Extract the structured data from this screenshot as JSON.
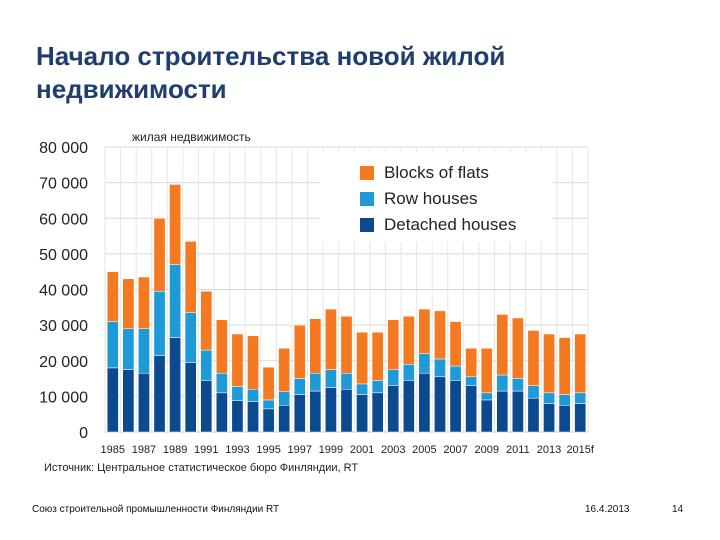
{
  "slide": {
    "title": "Начало строительства новой жилой недвижимости",
    "chart_label": "жилая недвижимость",
    "source": "Источник: Центральное статистическое бюро Финляндии, RT",
    "footer_org": "Союз строительной промышленности Финляндии RT",
    "footer_date": "16.4.2013",
    "page_number": "14"
  },
  "colors": {
    "blocks": "#f47920",
    "row": "#1e9ad6",
    "detached": "#0b4a8f",
    "grid": "#d9d9d9"
  },
  "chart_data": {
    "type": "bar",
    "stacked": true,
    "title": "жилая недвижимость",
    "xlabel": "",
    "ylabel": "",
    "ylim": [
      0,
      80000
    ],
    "yticks": [
      0,
      10000,
      20000,
      30000,
      40000,
      50000,
      60000,
      70000,
      80000
    ],
    "ytick_labels": [
      "0",
      "10 000",
      "20 000",
      "30 000",
      "40 000",
      "50 000",
      "60 000",
      "70 000",
      "80 000"
    ],
    "categories": [
      "1985",
      "1986",
      "1987",
      "1988",
      "1989",
      "1990",
      "1991",
      "1992",
      "1993",
      "1994",
      "1995",
      "1996",
      "1997",
      "1998",
      "1999",
      "2000",
      "2001",
      "2002",
      "2003",
      "2004",
      "2005",
      "2006",
      "2007",
      "2008",
      "2009",
      "2010",
      "2011",
      "2012",
      "2013",
      "2014",
      "2015f"
    ],
    "xtick_labels": [
      "1985",
      "1987",
      "1989",
      "1991",
      "1993",
      "1995",
      "1997",
      "1999",
      "2001",
      "2003",
      "2005",
      "2007",
      "2009",
      "2011",
      "2013",
      "2015f"
    ],
    "legend_position": "top-right",
    "series": [
      {
        "name": "Detached houses",
        "color_key": "detached",
        "values": [
          18000,
          17500,
          16500,
          21500,
          26500,
          19500,
          14500,
          11000,
          8800,
          8500,
          6500,
          7500,
          10500,
          11500,
          12500,
          12000,
          10500,
          11000,
          13000,
          14500,
          16500,
          15500,
          14500,
          13000,
          9000,
          11500,
          11500,
          9500,
          8000,
          7500,
          8000
        ]
      },
      {
        "name": "Row houses",
        "color_key": "row",
        "values": [
          13000,
          11500,
          12500,
          18000,
          20500,
          14000,
          8500,
          5500,
          4000,
          3500,
          2500,
          3800,
          4500,
          5000,
          5000,
          4500,
          3000,
          3500,
          4500,
          4500,
          5500,
          5000,
          4000,
          2500,
          2000,
          4500,
          3500,
          3500,
          3000,
          3000,
          3000
        ]
      },
      {
        "name": "Blocks of flats",
        "color_key": "blocks",
        "values": [
          14000,
          14000,
          14500,
          20500,
          22500,
          20000,
          16500,
          15000,
          14700,
          15000,
          9200,
          12200,
          15000,
          15300,
          17000,
          16000,
          14500,
          13500,
          14000,
          13500,
          12500,
          13500,
          12500,
          8000,
          12500,
          17000,
          17000,
          15500,
          16500,
          16000,
          16500
        ]
      }
    ]
  }
}
